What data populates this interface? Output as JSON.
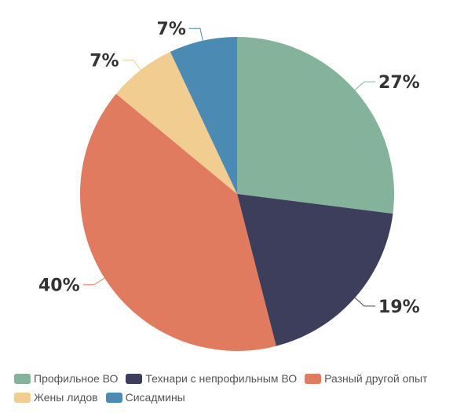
{
  "chart_data": {
    "type": "pie",
    "slices": [
      {
        "label": "Профильное ВО",
        "value": 27,
        "display": "27%",
        "color": "#84b29b"
      },
      {
        "label": "Технари с непрофильным ВО",
        "value": 19,
        "display": "19%",
        "color": "#3c3e5b"
      },
      {
        "label": "Разный другой опыт",
        "value": 40,
        "display": "40%",
        "color": "#e07b5f"
      },
      {
        "label": "Жены лидов",
        "value": 7,
        "display": "7%",
        "color": "#f2cd91"
      },
      {
        "label": "Сисадмины",
        "value": 7,
        "display": "7%",
        "color": "#4a8ab3"
      }
    ],
    "legend_position": "bottom-left",
    "start_angle": "12 o'clock, clockwise"
  },
  "legend": {
    "rows": [
      [
        {
          "label": "Профильное ВО",
          "color": "#84b29b"
        },
        {
          "label": "Технари с непрофильным ВО",
          "color": "#3c3e5b"
        },
        {
          "label": "Разный другой опыт",
          "color": "#e07b5f"
        }
      ],
      [
        {
          "label": "Жены лидов",
          "color": "#f2cd91"
        },
        {
          "label": "Сисадмины",
          "color": "#4a8ab3"
        }
      ]
    ]
  }
}
